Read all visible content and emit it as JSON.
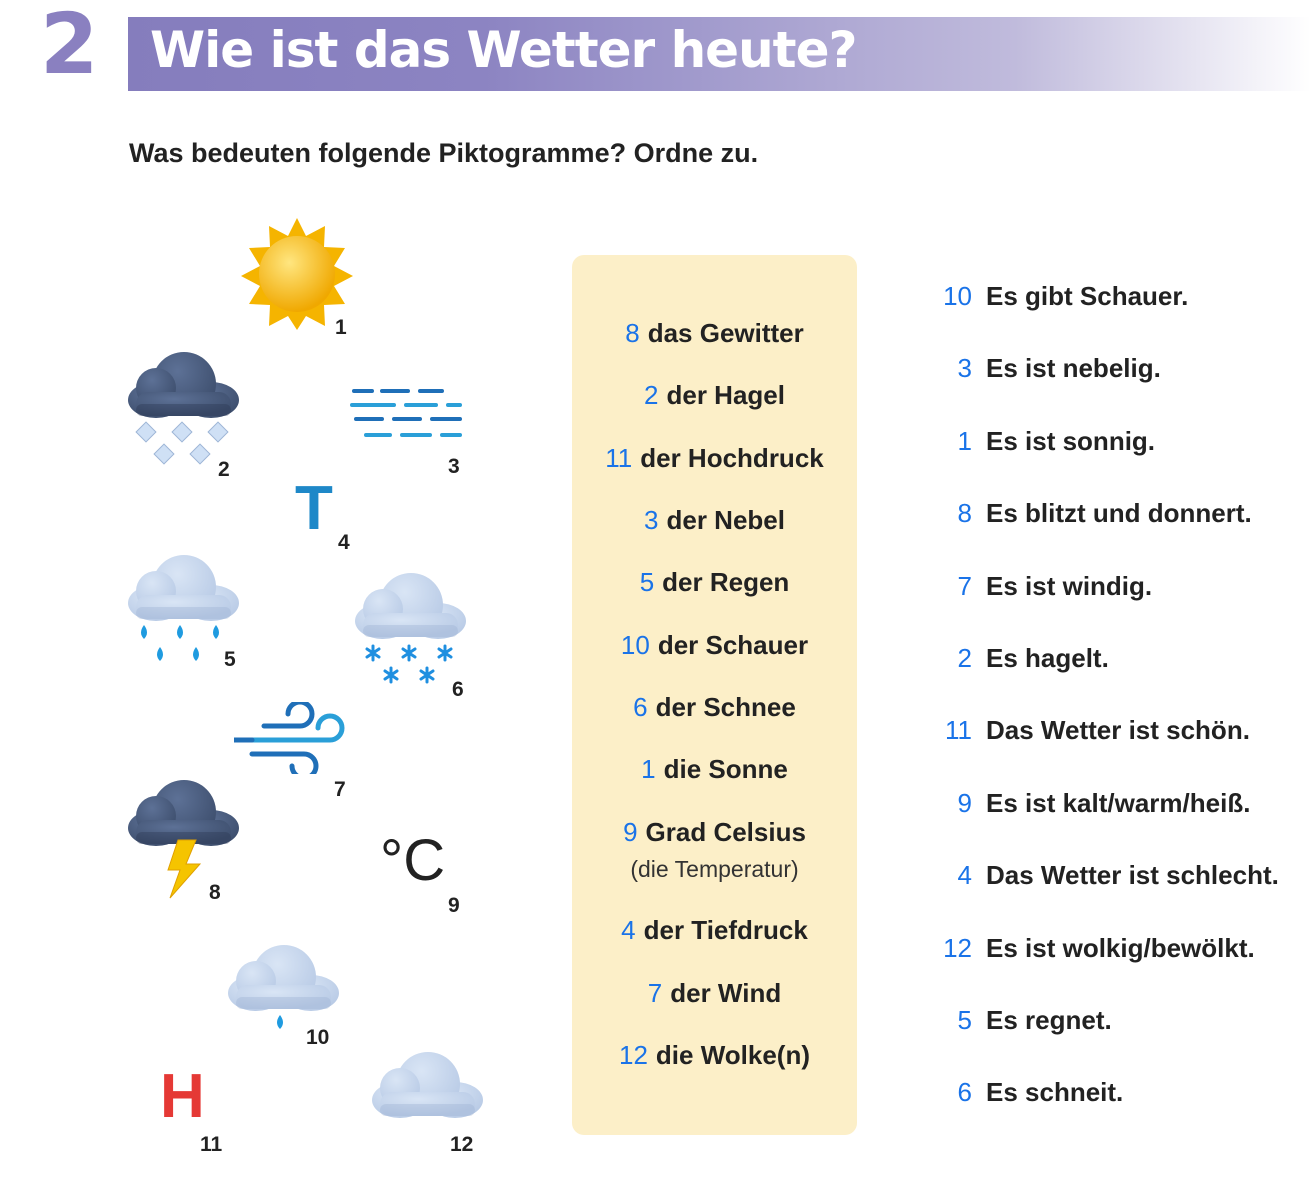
{
  "header": {
    "number": "2",
    "title": "Wie ist das Wetter heute?"
  },
  "instruction": "Was bedeuten folgende Piktogramme? Ordne zu.",
  "pictograms": [
    {
      "label": "1",
      "icon": "sun-icon"
    },
    {
      "label": "2",
      "icon": "hail-cloud-icon"
    },
    {
      "label": "3",
      "icon": "fog-icon"
    },
    {
      "label": "4",
      "icon": "low-pressure-icon",
      "glyph": "T"
    },
    {
      "label": "5",
      "icon": "rain-cloud-icon"
    },
    {
      "label": "6",
      "icon": "snow-cloud-icon"
    },
    {
      "label": "7",
      "icon": "wind-icon"
    },
    {
      "label": "8",
      "icon": "thunderstorm-icon"
    },
    {
      "label": "9",
      "icon": "celsius-icon",
      "glyph": "°C"
    },
    {
      "label": "10",
      "icon": "shower-cloud-icon"
    },
    {
      "label": "11",
      "icon": "high-pressure-icon",
      "glyph": "H"
    },
    {
      "label": "12",
      "icon": "cloud-icon"
    }
  ],
  "nouns": [
    {
      "n": "8",
      "text": "das Gewitter"
    },
    {
      "n": "2",
      "text": "der Hagel"
    },
    {
      "n": "11",
      "text": "der Hochdruck"
    },
    {
      "n": "3",
      "text": "der Nebel"
    },
    {
      "n": "5",
      "text": "der Regen"
    },
    {
      "n": "10",
      "text": "der Schauer"
    },
    {
      "n": "6",
      "text": "der Schnee"
    },
    {
      "n": "1",
      "text": "die Sonne"
    },
    {
      "n": "9",
      "text": "Grad Celsius",
      "sub": "(die Temperatur)"
    },
    {
      "n": "4",
      "text": "der Tiefdruck"
    },
    {
      "n": "7",
      "text": "der Wind"
    },
    {
      "n": "12",
      "text": "die Wolke(n)"
    }
  ],
  "sentences": [
    {
      "n": "10",
      "text": "Es gibt Schauer."
    },
    {
      "n": "3",
      "text": "Es ist nebelig."
    },
    {
      "n": "1",
      "text": "Es ist sonnig."
    },
    {
      "n": "8",
      "text": "Es blitzt und donnert."
    },
    {
      "n": "7",
      "text": "Es ist windig."
    },
    {
      "n": "2",
      "text": "Es hagelt."
    },
    {
      "n": "11",
      "text": "Das Wetter ist schön."
    },
    {
      "n": "9",
      "text": "Es ist kalt/warm/heiß."
    },
    {
      "n": "4",
      "text": "Das Wetter ist schlecht."
    },
    {
      "n": "12",
      "text": "Es ist wolkig/bewölkt."
    },
    {
      "n": "5",
      "text": "Es regnet."
    },
    {
      "n": "6",
      "text": "Es schneit."
    }
  ],
  "colors": {
    "banner": "#857dbd",
    "answer_number": "#1a73e8",
    "box": "#fcefc8",
    "high": "#e53935",
    "low": "#1e88c8"
  }
}
